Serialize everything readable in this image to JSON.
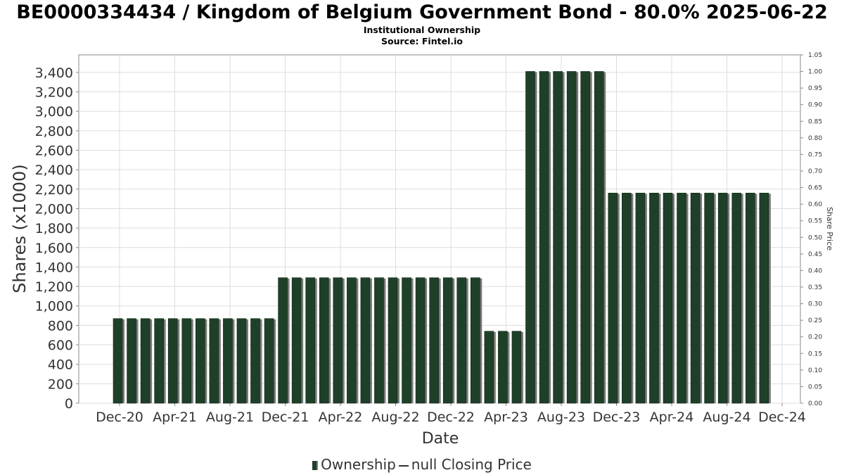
{
  "header": {
    "title": "BE0000334434 / Kingdom of Belgium Government Bond - 80.0% 2025-06-22",
    "subtitle1": "Institutional Ownership",
    "subtitle2": "Source: Fintel.io"
  },
  "legend": {
    "ownership_label": "Ownership",
    "price_label": "null Closing Price"
  },
  "colors": {
    "bar": "#1e4028",
    "bar_shadow": "#7a7a7a",
    "grid": "#dddddd",
    "axis": "#888888"
  },
  "chart_data": {
    "type": "bar",
    "title": "BE0000334434 / Kingdom of Belgium Government Bond - 80.0% 2025-06-22",
    "xlabel": "Date",
    "ylabel": "Shares (x1000)",
    "y2label": "Share Price",
    "ylim": [
      0,
      3580
    ],
    "y2lim": [
      0,
      1.05
    ],
    "grid": true,
    "legend_position": "bottom",
    "x_ticks": [
      "Dec-20",
      "Apr-21",
      "Aug-21",
      "Dec-21",
      "Apr-22",
      "Aug-22",
      "Dec-22",
      "Apr-23",
      "Aug-23",
      "Dec-23",
      "Apr-24",
      "Aug-24",
      "Dec-24"
    ],
    "y_ticks": [
      0,
      200,
      400,
      600,
      800,
      1000,
      1200,
      1400,
      1600,
      1800,
      2000,
      2200,
      2400,
      2600,
      2800,
      3000,
      3200,
      3400
    ],
    "y_tick_labels": [
      "0",
      "200",
      "400",
      "600",
      "800",
      "1,000",
      "1,200",
      "1,400",
      "1,600",
      "1,800",
      "2,000",
      "2,200",
      "2,400",
      "2,600",
      "2,800",
      "3,000",
      "3,200",
      "3,400"
    ],
    "y2_ticks": [
      "0.00",
      "0.05",
      "0.10",
      "0.15",
      "0.20",
      "0.25",
      "0.30",
      "0.35",
      "0.40",
      "0.45",
      "0.50",
      "0.55",
      "0.60",
      "0.65",
      "0.70",
      "0.75",
      "0.80",
      "0.85",
      "0.90",
      "0.95",
      "1.00",
      "1.05"
    ],
    "series": [
      {
        "name": "Ownership",
        "values": [
          870,
          870,
          870,
          870,
          870,
          870,
          870,
          870,
          870,
          870,
          870,
          870,
          1290,
          1290,
          1290,
          1290,
          1290,
          1290,
          1290,
          1290,
          1290,
          1290,
          1290,
          1290,
          1290,
          1290,
          1290,
          740,
          740,
          740,
          3410,
          3410,
          3410,
          3410,
          3410,
          3410,
          2160,
          2160,
          2160,
          2160,
          2160,
          2160,
          2160,
          2160,
          2160,
          2160,
          2160,
          2160
        ]
      }
    ]
  }
}
